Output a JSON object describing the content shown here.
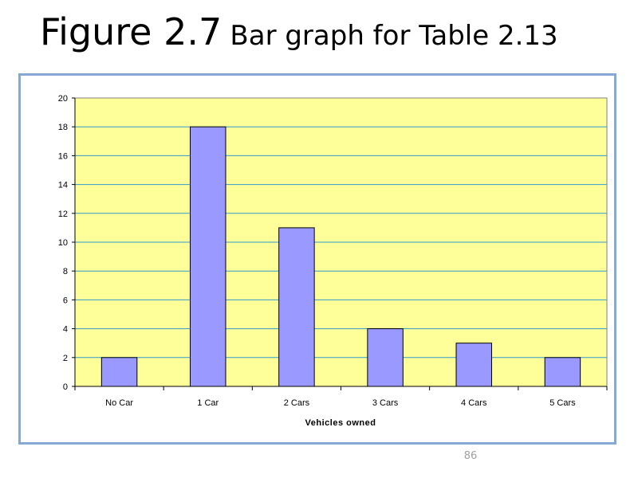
{
  "slide": {
    "title_main": "Figure 2.7",
    "title_rest": "Bar graph for Table 2.13",
    "page_number": "86"
  },
  "colors": {
    "plot_background": "#ffff99",
    "bar_fill": "#9999ff",
    "gridline": "#3399cc",
    "frame_border": "#86a9d2"
  },
  "chart_data": {
    "type": "bar",
    "title": "",
    "categories": [
      "No Car",
      "1 Car",
      "2 Cars",
      "3 Cars",
      "4 Cars",
      "5 Cars"
    ],
    "values": [
      2,
      18,
      11,
      4,
      3,
      2
    ],
    "xlabel": "Vehicles owned",
    "ylabel": "",
    "ylim": [
      0,
      20
    ],
    "yticks": [
      0,
      2,
      4,
      6,
      8,
      10,
      12,
      14,
      16,
      18,
      20
    ],
    "grid": true,
    "legend": "none"
  }
}
